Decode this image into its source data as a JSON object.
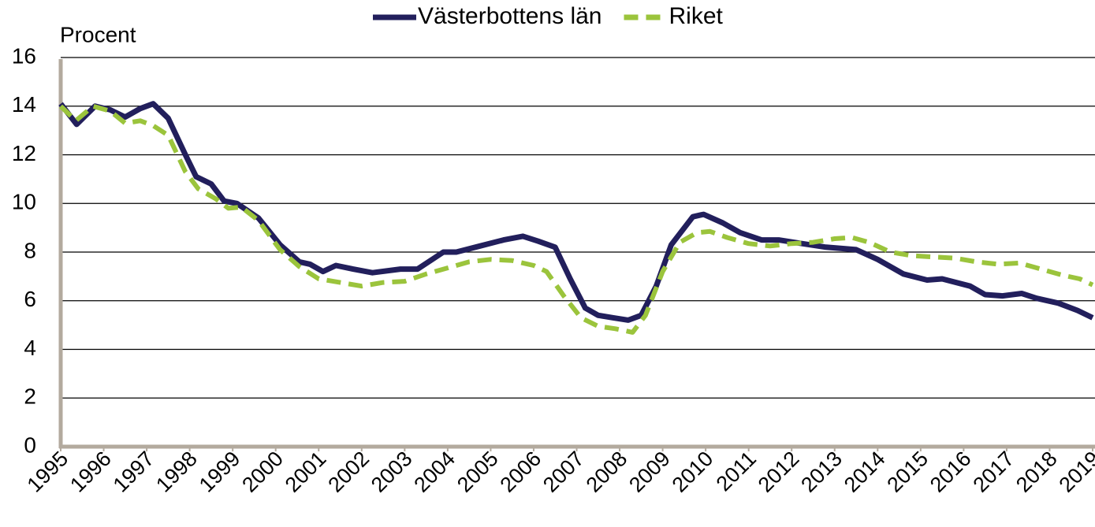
{
  "chart_data": {
    "type": "line",
    "ylabel": "Procent",
    "xlim": [
      1995,
      2019
    ],
    "xticks": [
      1995,
      1996,
      1997,
      1998,
      1999,
      2000,
      2001,
      2002,
      2003,
      2004,
      2005,
      2006,
      2007,
      2008,
      2009,
      2010,
      2011,
      2012,
      2013,
      2014,
      2015,
      2016,
      2017,
      2018,
      2019
    ],
    "ylim": [
      0,
      16
    ],
    "yticks": [
      0,
      2,
      4,
      6,
      8,
      10,
      12,
      14,
      16
    ],
    "grid": true,
    "legend": "top",
    "series": [
      {
        "name": "Västerbottens län",
        "color": "#221f5c",
        "dash": false,
        "x": [
          1995.0,
          1995.37,
          1995.8,
          1996.15,
          1996.5,
          1996.85,
          1997.15,
          1997.5,
          1997.9,
          1998.15,
          1998.5,
          1998.8,
          1999.1,
          1999.6,
          2000.1,
          2000.55,
          2000.8,
          2001.1,
          2001.4,
          2001.8,
          2002.25,
          2002.9,
          2003.3,
          2003.9,
          2004.2,
          2004.75,
          2005.3,
          2005.75,
          2006.1,
          2006.5,
          2006.85,
          2007.2,
          2007.5,
          2007.85,
          2008.2,
          2008.5,
          2008.85,
          2009.2,
          2009.7,
          2009.95,
          2010.4,
          2010.8,
          2011.3,
          2011.7,
          2012.05,
          2012.8,
          2013.5,
          2014.0,
          2014.6,
          2015.15,
          2015.5,
          2016.15,
          2016.5,
          2016.9,
          2017.35,
          2017.7,
          2018.2,
          2018.65,
          2019.0
        ],
        "values": [
          14.1,
          13.25,
          14.0,
          13.85,
          13.55,
          13.9,
          14.1,
          13.5,
          12.0,
          11.1,
          10.8,
          10.1,
          10.0,
          9.4,
          8.3,
          7.6,
          7.5,
          7.2,
          7.45,
          7.3,
          7.15,
          7.3,
          7.3,
          8.0,
          8.0,
          8.25,
          8.5,
          8.65,
          8.45,
          8.2,
          6.9,
          5.7,
          5.4,
          5.3,
          5.2,
          5.4,
          6.6,
          8.3,
          9.45,
          9.55,
          9.2,
          8.8,
          8.5,
          8.5,
          8.4,
          8.2,
          8.1,
          7.7,
          7.1,
          6.85,
          6.9,
          6.6,
          6.25,
          6.2,
          6.3,
          6.1,
          5.9,
          5.6,
          5.3
        ]
      },
      {
        "name": "Riket",
        "color": "#9bc43c",
        "dash": true,
        "x": [
          1995.0,
          1995.35,
          1995.75,
          1996.15,
          1996.5,
          1996.85,
          1997.15,
          1997.5,
          1997.9,
          1998.2,
          1998.6,
          1998.9,
          1999.2,
          1999.6,
          2000.1,
          2000.55,
          2001.0,
          2001.5,
          2002.0,
          2002.5,
          2003.0,
          2003.5,
          2004.0,
          2004.5,
          2005.0,
          2005.5,
          2006.0,
          2006.3,
          2006.7,
          2007.1,
          2007.5,
          2007.9,
          2008.3,
          2008.6,
          2009.0,
          2009.4,
          2009.8,
          2010.1,
          2010.5,
          2011.0,
          2011.5,
          2012.0,
          2012.5,
          2013.0,
          2013.4,
          2013.8,
          2014.3,
          2014.8,
          2015.3,
          2015.8,
          2016.3,
          2016.8,
          2017.3,
          2017.8,
          2018.3,
          2018.7,
          2019.0
        ],
        "values": [
          14.0,
          13.4,
          14.0,
          13.8,
          13.3,
          13.4,
          13.2,
          12.8,
          11.3,
          10.6,
          10.2,
          9.8,
          9.85,
          9.3,
          8.1,
          7.4,
          6.9,
          6.75,
          6.6,
          6.75,
          6.8,
          7.1,
          7.35,
          7.6,
          7.7,
          7.65,
          7.45,
          7.2,
          6.2,
          5.3,
          4.95,
          4.85,
          4.7,
          5.4,
          7.2,
          8.4,
          8.8,
          8.85,
          8.6,
          8.35,
          8.25,
          8.35,
          8.4,
          8.55,
          8.6,
          8.4,
          8.0,
          7.85,
          7.8,
          7.75,
          7.6,
          7.5,
          7.55,
          7.3,
          7.05,
          6.9,
          6.65
        ]
      }
    ]
  }
}
